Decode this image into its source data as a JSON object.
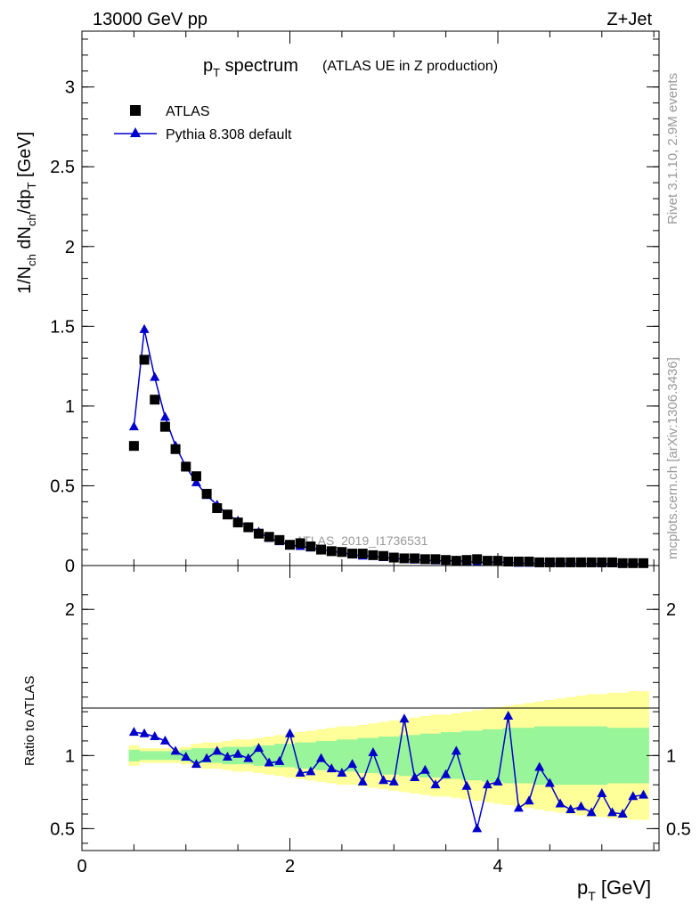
{
  "header": {
    "left": "13000 GeV pp",
    "right": "Z+Jet"
  },
  "title": {
    "main": "p",
    "main_sub": "T",
    "main_rest": " spectrum",
    "extra": "(ATLAS UE in Z production)"
  },
  "side_labels": {
    "rivet": "Rivet 3.1.10,  2.9M events",
    "mcplots": "mcplots.cern.ch [arXiv:1306.3436]"
  },
  "watermark": "ATLAS_2019_I1736531",
  "legend": {
    "data_label": "ATLAS",
    "mc_label": "Pythia 8.308 default"
  },
  "axis_labels": {
    "y_main": "1/N",
    "y_main_parts": [
      "1/N",
      "ch",
      " dN",
      "ch",
      "/dp",
      "T",
      " [GeV]"
    ],
    "y_ratio": "Ratio to ATLAS",
    "x": "p",
    "x_sub": "T",
    "x_unit": " [GeV]"
  },
  "colors": {
    "data": "#000000",
    "mc": "#0000cc",
    "band_inner": "#99f599",
    "band_outer": "#ffff99"
  },
  "chart_data": [
    {
      "type": "scatter",
      "panel": "main",
      "xlim": [
        0,
        5.55
      ],
      "ylim": [
        0,
        3.35
      ],
      "x_ticks": [
        0,
        2,
        4
      ],
      "y_ticks": [
        0,
        0.5,
        1,
        1.5,
        2,
        2.5,
        3
      ],
      "y_tick_labels": [
        "0",
        "0.5",
        "1",
        "1.5",
        "2",
        "2.5",
        "3"
      ],
      "x": [
        0.5,
        0.6,
        0.7,
        0.8,
        0.9,
        1.0,
        1.1,
        1.2,
        1.3,
        1.4,
        1.5,
        1.6,
        1.7,
        1.8,
        1.9,
        2.0,
        2.1,
        2.2,
        2.3,
        2.4,
        2.5,
        2.6,
        2.7,
        2.8,
        2.9,
        3.0,
        3.1,
        3.2,
        3.3,
        3.4,
        3.5,
        3.6,
        3.7,
        3.8,
        3.9,
        4.0,
        4.1,
        4.2,
        4.3,
        4.4,
        4.5,
        4.6,
        4.7,
        4.8,
        4.9,
        5.0,
        5.1,
        5.2,
        5.3,
        5.4
      ],
      "series": [
        {
          "name": "ATLAS",
          "values": [
            0.75,
            1.29,
            1.04,
            0.87,
            0.73,
            0.62,
            0.56,
            0.45,
            0.36,
            0.32,
            0.27,
            0.24,
            0.2,
            0.18,
            0.16,
            0.13,
            0.14,
            0.12,
            0.1,
            0.09,
            0.085,
            0.075,
            0.075,
            0.065,
            0.06,
            0.05,
            0.045,
            0.045,
            0.04,
            0.04,
            0.035,
            0.03,
            0.035,
            0.04,
            0.03,
            0.03,
            0.025,
            0.025,
            0.025,
            0.02,
            0.02,
            0.02,
            0.02,
            0.02,
            0.02,
            0.02,
            0.02,
            0.015,
            0.015,
            0.015
          ]
        },
        {
          "name": "Pythia 8.308 default",
          "values": [
            0.87,
            1.48,
            1.18,
            0.93,
            0.75,
            0.62,
            0.52,
            0.44,
            0.38,
            0.32,
            0.28,
            0.24,
            0.21,
            0.17,
            0.15,
            0.13,
            0.12,
            0.11,
            0.1,
            0.09,
            0.08,
            0.07,
            0.06,
            0.06,
            0.05,
            0.045,
            0.04,
            0.035,
            0.035,
            0.03,
            0.03,
            0.03,
            0.025,
            0.02,
            0.02,
            0.02,
            0.02,
            0.015,
            0.015,
            0.015,
            0.015,
            0.013,
            0.013,
            0.013,
            0.012,
            0.012,
            0.011,
            0.011,
            0.01,
            0.01
          ]
        }
      ]
    },
    {
      "type": "line",
      "panel": "ratio",
      "xlim": [
        0,
        5.55
      ],
      "ylim": [
        0.35,
        2.3
      ],
      "y_ticks": [
        0.5,
        1,
        2
      ],
      "y_tick_labels": [
        "0.5",
        "1",
        "2"
      ],
      "x_ticks": [
        0,
        2,
        4
      ],
      "x_tick_labels": [
        "0",
        "2",
        "4"
      ],
      "x": [
        0.5,
        0.6,
        0.7,
        0.8,
        0.9,
        1.0,
        1.1,
        1.2,
        1.3,
        1.4,
        1.5,
        1.6,
        1.7,
        1.8,
        1.9,
        2.0,
        2.1,
        2.2,
        2.3,
        2.4,
        2.5,
        2.6,
        2.7,
        2.8,
        2.9,
        3.0,
        3.1,
        3.2,
        3.3,
        3.4,
        3.5,
        3.6,
        3.7,
        3.8,
        3.9,
        4.0,
        4.1,
        4.2,
        4.3,
        4.4,
        4.5,
        4.6,
        4.7,
        4.8,
        4.9,
        5.0,
        5.1,
        5.2,
        5.3,
        5.4
      ],
      "series": [
        {
          "name": "Pythia 8.308 default",
          "values": [
            1.16,
            1.15,
            1.13,
            1.1,
            1.03,
            0.99,
            0.94,
            0.98,
            1.03,
            0.99,
            1.01,
            0.98,
            1.05,
            0.95,
            0.96,
            1.15,
            0.88,
            0.89,
            0.98,
            0.91,
            0.88,
            0.94,
            0.82,
            1.02,
            0.83,
            0.82,
            1.25,
            0.85,
            0.9,
            0.8,
            0.87,
            1.03,
            0.79,
            0.5,
            0.8,
            0.82,
            1.27,
            0.64,
            0.69,
            0.92,
            0.81,
            0.67,
            0.63,
            0.65,
            0.61,
            0.74,
            0.61,
            0.6,
            0.72,
            0.73
          ]
        }
      ],
      "band_inner": {
        "lo": [
          0.96,
          0.97,
          0.97,
          0.97,
          0.97,
          0.96,
          0.95,
          0.95,
          0.95,
          0.94,
          0.94,
          0.94,
          0.93,
          0.93,
          0.92,
          0.92,
          0.91,
          0.91,
          0.9,
          0.9,
          0.89,
          0.89,
          0.88,
          0.88,
          0.87,
          0.87,
          0.86,
          0.86,
          0.85,
          0.85,
          0.84,
          0.84,
          0.83,
          0.83,
          0.82,
          0.82,
          0.81,
          0.81,
          0.81,
          0.8,
          0.8,
          0.8,
          0.8,
          0.8,
          0.8,
          0.8,
          0.81,
          0.81,
          0.81,
          0.81
        ],
        "hi": [
          1.04,
          1.03,
          1.03,
          1.03,
          1.03,
          1.04,
          1.05,
          1.05,
          1.05,
          1.06,
          1.06,
          1.06,
          1.07,
          1.07,
          1.08,
          1.08,
          1.09,
          1.09,
          1.1,
          1.1,
          1.11,
          1.11,
          1.12,
          1.12,
          1.13,
          1.13,
          1.14,
          1.14,
          1.15,
          1.15,
          1.16,
          1.16,
          1.17,
          1.17,
          1.18,
          1.18,
          1.19,
          1.19,
          1.19,
          1.2,
          1.2,
          1.2,
          1.2,
          1.2,
          1.2,
          1.2,
          1.19,
          1.19,
          1.19,
          1.19
        ]
      },
      "band_outer": {
        "lo": [
          0.93,
          0.95,
          0.95,
          0.95,
          0.95,
          0.94,
          0.92,
          0.91,
          0.91,
          0.9,
          0.89,
          0.89,
          0.88,
          0.87,
          0.86,
          0.85,
          0.84,
          0.83,
          0.82,
          0.81,
          0.8,
          0.8,
          0.79,
          0.78,
          0.77,
          0.76,
          0.75,
          0.74,
          0.73,
          0.72,
          0.72,
          0.71,
          0.7,
          0.69,
          0.68,
          0.67,
          0.66,
          0.65,
          0.64,
          0.63,
          0.62,
          0.61,
          0.6,
          0.59,
          0.58,
          0.58,
          0.57,
          0.57,
          0.56,
          0.56
        ],
        "hi": [
          1.07,
          1.05,
          1.05,
          1.05,
          1.05,
          1.06,
          1.08,
          1.09,
          1.09,
          1.1,
          1.11,
          1.11,
          1.12,
          1.13,
          1.14,
          1.15,
          1.16,
          1.17,
          1.18,
          1.19,
          1.2,
          1.2,
          1.21,
          1.22,
          1.23,
          1.24,
          1.25,
          1.26,
          1.27,
          1.28,
          1.28,
          1.29,
          1.3,
          1.31,
          1.32,
          1.33,
          1.34,
          1.35,
          1.36,
          1.37,
          1.38,
          1.39,
          1.4,
          1.41,
          1.42,
          1.42,
          1.43,
          1.43,
          1.44,
          1.44
        ]
      }
    }
  ]
}
